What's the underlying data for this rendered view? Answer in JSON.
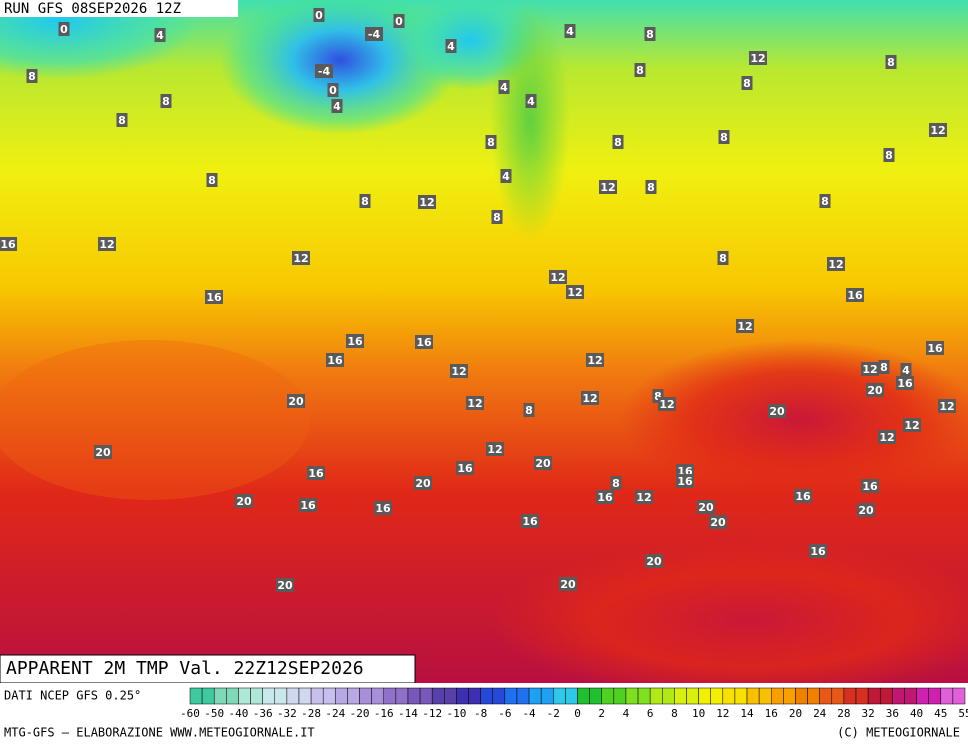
{
  "header": {
    "run": "RUN GFS 08SEP2026 12Z"
  },
  "map_labels": [
    "0",
    "4",
    "0",
    "0",
    "-4",
    "4",
    "4",
    "8",
    "8",
    "-4",
    "0",
    "4",
    "8",
    "8",
    "4",
    "4",
    "8",
    "12",
    "8",
    "8",
    "12",
    "8",
    "8",
    "8",
    "8",
    "8",
    "4",
    "12",
    "8",
    "8",
    "12",
    "8",
    "8",
    "16",
    "12",
    "12",
    "8",
    "12",
    "12",
    "12",
    "16",
    "16",
    "12",
    "16",
    "16",
    "16",
    "16",
    "12",
    "12",
    "8",
    "4",
    "12",
    "20",
    "16",
    "20",
    "12",
    "12",
    "8",
    "12",
    "8",
    "20",
    "12",
    "12",
    "12",
    "12",
    "20",
    "20",
    "16",
    "16",
    "16",
    "16",
    "20",
    "8",
    "16",
    "12",
    "16",
    "20",
    "16",
    "16",
    "16",
    "20",
    "20",
    "20",
    "16",
    "16",
    "20",
    "20",
    "20"
  ],
  "footer": {
    "title": "APPARENT 2M TMP Val. 22Z12SEP2026",
    "source": "DATI NCEP GFS 0.25°",
    "credit": "MTG-GFS — ELABORAZIONE WWW.METEOGIORNALE.IT",
    "copyright": "(C) METEOGIORNALE"
  },
  "colorbar": {
    "ticks": [
      "-60",
      "-50",
      "-40",
      "-36",
      "-32",
      "-28",
      "-24",
      "-20",
      "-16",
      "-14",
      "-12",
      "-10",
      "-8",
      "-6",
      "-4",
      "-2",
      "0",
      "2",
      "4",
      "6",
      "8",
      "10",
      "12",
      "14",
      "16",
      "20",
      "24",
      "28",
      "32",
      "36",
      "40",
      "45",
      "55"
    ],
    "colors": [
      "#40c8a0",
      "#80d8b8",
      "#b0e8d8",
      "#c8e8ec",
      "#d0d8f0",
      "#c8c0ec",
      "#b8a8e4",
      "#a890d8",
      "#9070c8",
      "#7858b8",
      "#5840a8",
      "#3c30b0",
      "#2848d8",
      "#2070f0",
      "#20a0f0",
      "#30c8e8",
      "#20c030",
      "#50d020",
      "#80e020",
      "#b0e818",
      "#d8f010",
      "#f0f000",
      "#f8e000",
      "#f8c000",
      "#f8a000",
      "#f08000",
      "#e85818",
      "#d83020",
      "#c01838",
      "#c01870",
      "#d020b0",
      "#e060d8"
    ]
  }
}
